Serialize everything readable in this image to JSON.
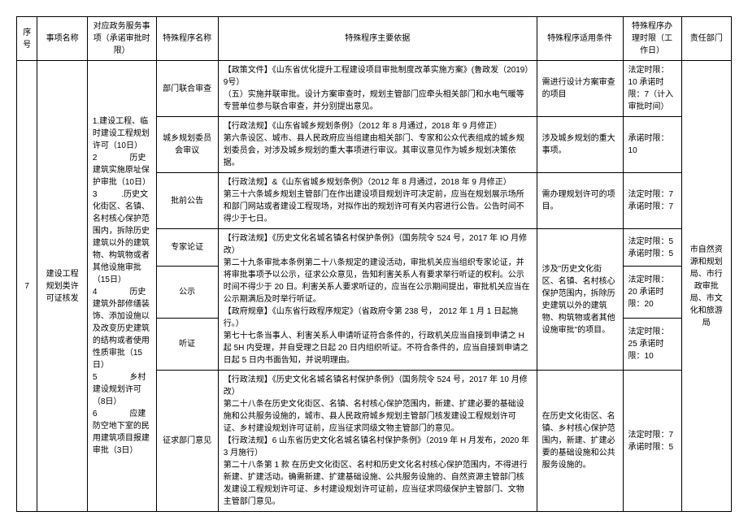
{
  "headers": {
    "seq": "序号",
    "itemName": "事项名称",
    "service": "对应政务服务事项（承诺审批时限）",
    "procName": "特殊程序名称",
    "basis": "特殊程序主要依据",
    "conditions": "特殊程序适用条件",
    "timeLimit": "特殊程序办理时限（工作日）",
    "dept": "责任部门"
  },
  "row": {
    "seq": "7",
    "itemName": "建设工程规划类许可证核发",
    "service": "1.建设工程、临时建设工程规划许可（10日）\n2　　　　历史建筑实施原址保护审批（10日）\n3　　　.历史文化街区、名镇、名村核心保护范围内，拆除历史建筑以外的建筑物、构筑物或者其他设施审批（15日）\n4　　　　历史建筑外部修缮装饰、添加设施以及改变历史建筑的结构或者使用性质审批（15日）\n5　　　　乡村建设规划许可（8日）\n6　　　　应建防空地下室的民用建筑项目报建审批（3日）",
    "dept": "市自然资源和规划局、市行政审批局、市文化和旅游局"
  },
  "procs": [
    {
      "name": "部门联合审查",
      "basis": "【政策文件】《山东省优化提升工程建设项目审批制度改革实施方案》(鲁政发（2019）9号）\n（五）实施并联审批。设计方案审查时，规划主管部门应牵头相关部门和水电气暖等专营单位参与联合审查，并分别提出意见。",
      "conditions": "需进行设计方案审查的项目",
      "timeLimit": "法定时限：10 承诺时限：7（计入审批时间）"
    },
    {
      "name": "城乡规划委员会审议",
      "basis": "【行政法规】《山东省城乡规划条例》（2012 年 8 月通过，2018 年 9 月修正）\n第六条设区、城市、县人民政府应当组建由相关部门、专家和公众代表组成的城乡规划委员会，对涉及城乡规划的重大事项进行审议。其审议意见作为城乡规划决策依据。",
      "conditions": "涉及城乡规划的重大事项。",
      "timeLimit": "承诺时限：10"
    },
    {
      "name": "批前公告",
      "basis": "【行政法规】&《山东省城乡规划条例》（2012 年 8 月通过，2018 年 9 月修正）\n第三十六条城乡规划主管部门在作出建设项目规划许可决定前，应当在规划展示场所和部门网站或者建设工程现场，对拟作出的规划许可有关内容进行公告。公告时间不得少于七日。",
      "conditions": "需办理规划许可的项目。",
      "timeLimit": "法定时限：7\n承诺时限：7"
    },
    {
      "name": "专家论证",
      "basisSpan": true,
      "timeLimit": "法定时限：5 承诺时限：5"
    },
    {
      "name": "公示",
      "timeLimit": "法定时限：20 承诺时限：20"
    },
    {
      "name": "听证",
      "timeLimit": "法定时限：25 承诺时限：10"
    },
    {
      "name": "征求部门意见",
      "basis": "【行政法规】《历史文化名城名镇名村保护条例》（国务院令 524 号，2017 年 10 月修改）\n第二十八条在历史文化街区、名镇、名村核心保护范围内，新建、扩建必要的基础设施和公共服务设施的，城市、县人民政府城乡规划主管部门核发建设工程规划许可证、乡村建设规划许可证前，应当征求同级文物主管部门的意见。\n【行政法规】6 山东省历史文化名城名镇名村保护条例》（2019 年 H 月发布，2020 年 3 月施行）\n第二十八条第 1 款 在历史文化街区、名村和历史文化名村核心保护范围内，不得进行新建、扩建活动。确需新建、扩建基础设施、公共服务设施的、自然资源主管部门核发建设工程规划许可证、乡村建设规划许可证前，应当征求同级保护主管部门、文物主管部门意见。",
      "conditions": "在历史文化街区、名镇、乡村核心保护范围内，新建、扩建必要的基础设施和公共服务设施的。",
      "timeLimit": "法定时限：7\n承诺时限：5"
    }
  ],
  "mergedBasis": "【行政法规】《历史文化名城名镇名村保护条例》（国务院令 524 号，2017 年 IO 月修改）\n第二十九条审批本条例第二十八条规定的建设活动，审批机关应当组织专家论证，并将审批事项予以公示，征求公众意见，告知利害关系人有要求举行听证的权利。公示时间不得少于 20 日。利害关系人要求听证的，应当在公示期间提出，审批机关应当在公示期满后及时举行听证。\n【政府规章】《山东省行政程序规定》（省政府令第 238 号， 2012 年 1 月 1 日起施行。）\n第七十七条当事人、利害关系人申请听证符合条件的，行政机关应当自接到申请之 H 起 5H 内受理，并自受理之日起 20 日内组织听证。不符合条件的，应当自接到申请之日起 5 日内书面告知，并说明理由。",
  "mergedConditions": "涉及\"历史文化街区、名镇、名村核心保护范围内，拆除历史建筑以外的建筑物、构筑物或者其他设施审批\"的项目。"
}
